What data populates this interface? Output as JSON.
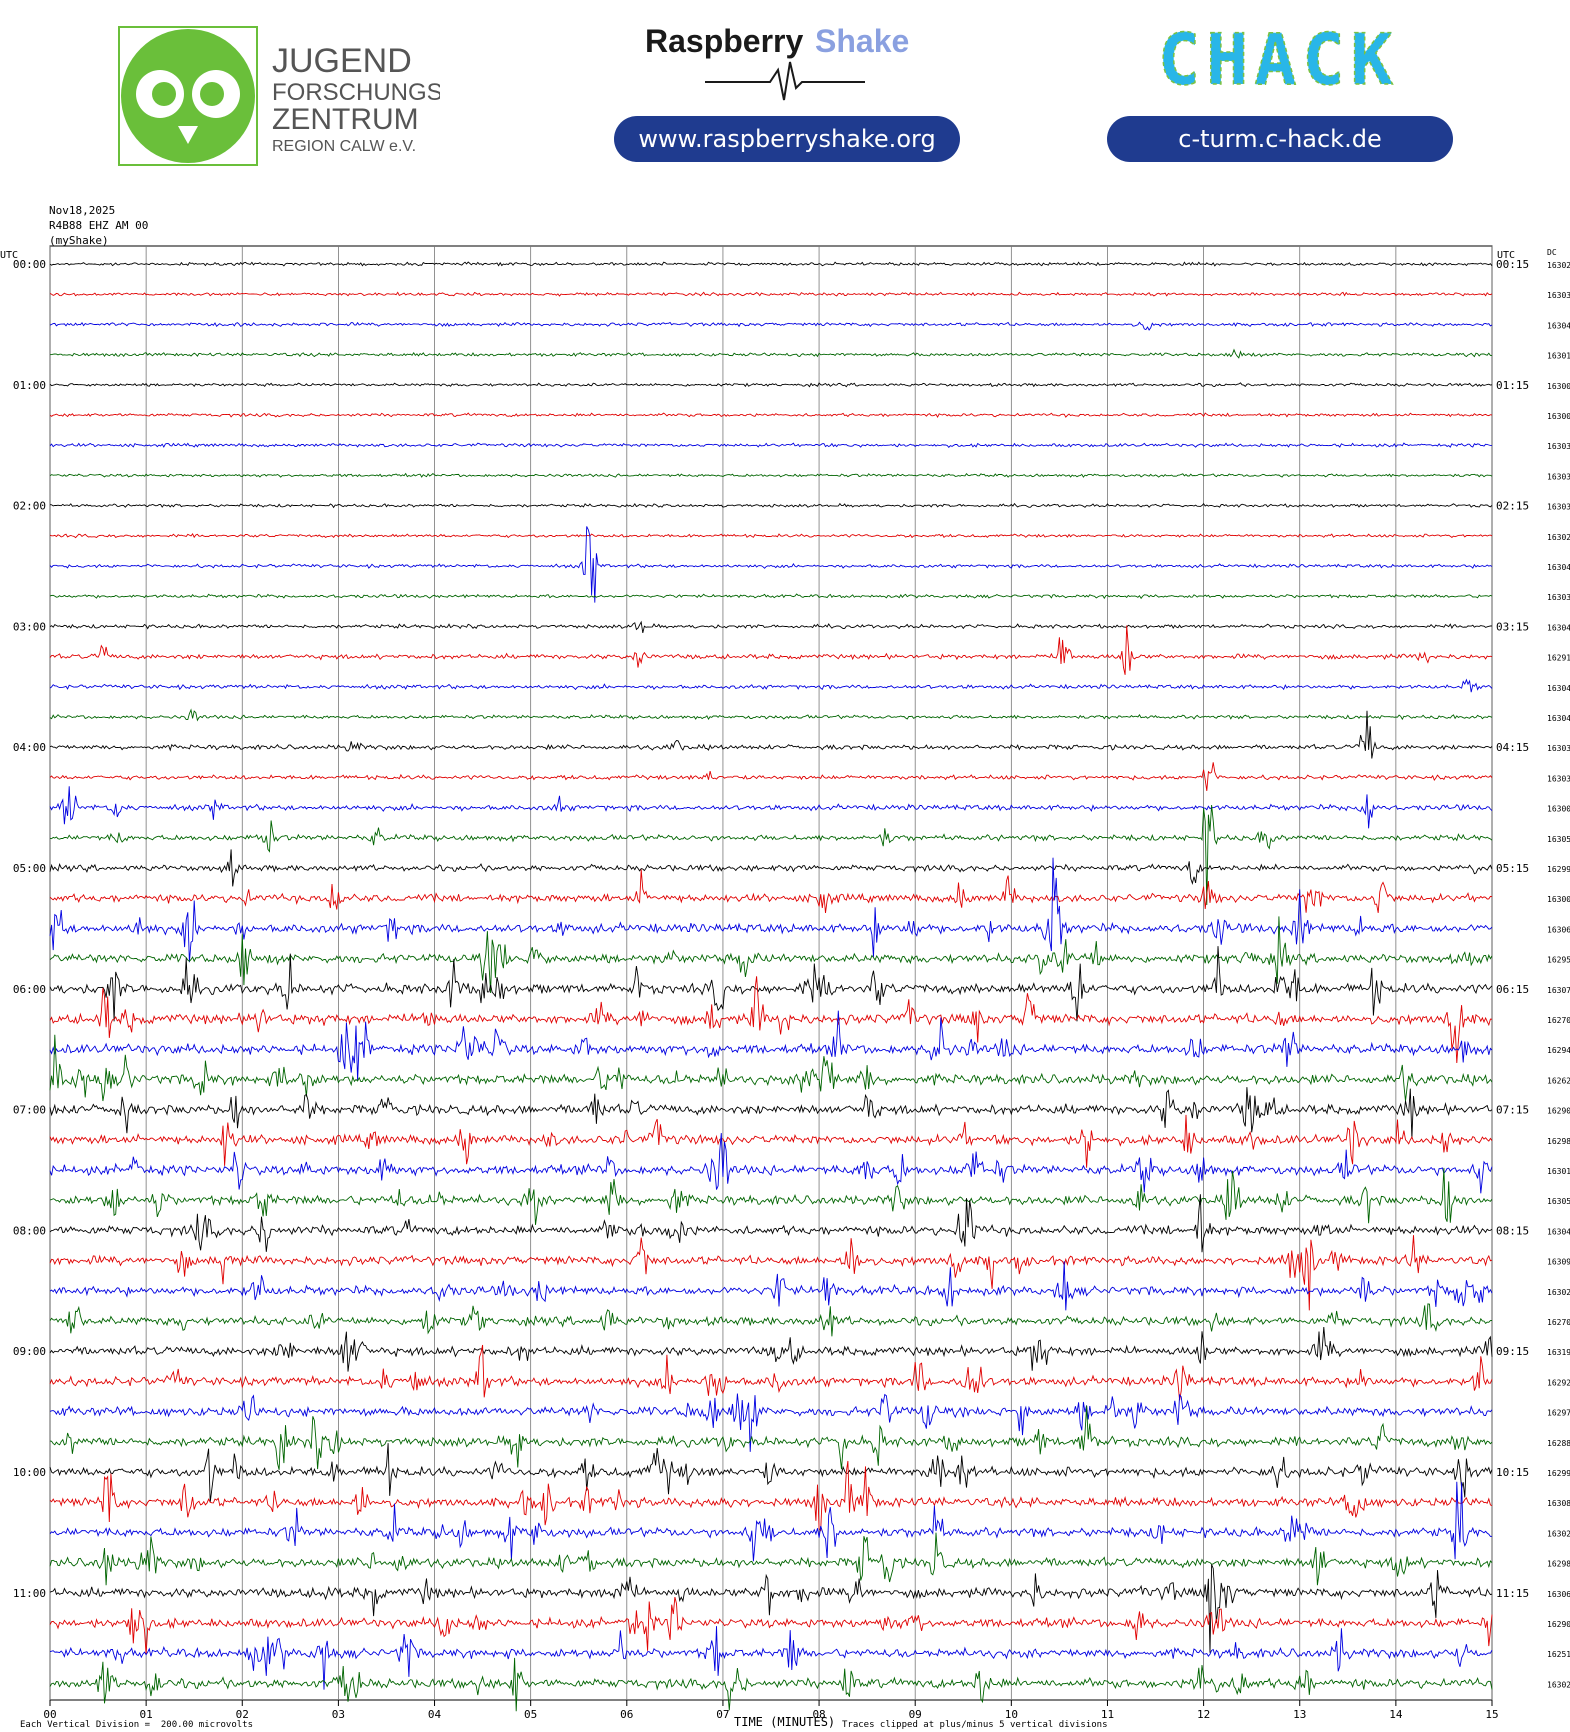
{
  "header": {
    "jfz_logo_lines": [
      "JUGEND",
      "FORSCHUNGS",
      "ZENTRUM",
      "REGION CALW e.V."
    ],
    "rs_brand_1": "Raspberry",
    "rs_brand_2": "Shake",
    "rs_url": "www.raspberryshake.org",
    "chack_logo": "CHACK",
    "chack_url": "c-turm.c-hack.de",
    "colors": {
      "pill_bg": "#1f3b8f",
      "jfz_green": "#6abf3a",
      "chack_green": "#7cc242",
      "chack_cyan": "#29b6e8",
      "rs_blue": "#8aa0e0"
    }
  },
  "meta": {
    "date": "Nov18,2025",
    "station": "R4B88 EHZ AM 00",
    "network": "(myShake)"
  },
  "chart_data": {
    "type": "line",
    "title": "",
    "left_axis_header": "UTC",
    "right_axis_header": "UTC",
    "dc_header": "DC",
    "xlabel": "TIME (MINUTES)",
    "x_ticks": [
      "00",
      "01",
      "02",
      "03",
      "04",
      "05",
      "06",
      "07",
      "08",
      "09",
      "10",
      "11",
      "12",
      "13",
      "14",
      "15"
    ],
    "xlim": [
      0,
      15
    ],
    "grid": true,
    "trace_colors": [
      "#000000",
      "#e00000",
      "#0000e0",
      "#006400"
    ],
    "left_labels": [
      "00:00",
      "",
      "",
      "",
      "01:00",
      "",
      "",
      "",
      "02:00",
      "",
      "",
      "",
      "03:00",
      "",
      "",
      "",
      "04:00",
      "",
      "",
      "",
      "05:00",
      "",
      "",
      "",
      "06:00",
      "",
      "",
      "",
      "07:00",
      "",
      "",
      "",
      "08:00",
      "",
      "",
      "",
      "09:00",
      "",
      "",
      "",
      "10:00",
      "",
      "",
      "",
      "11:00",
      "",
      "",
      ""
    ],
    "right_labels": [
      "00:15",
      "",
      "",
      "",
      "01:15",
      "",
      "",
      "",
      "02:15",
      "",
      "",
      "",
      "03:15",
      "",
      "",
      "",
      "04:15",
      "",
      "",
      "",
      "05:15",
      "",
      "",
      "",
      "06:15",
      "",
      "",
      "",
      "07:15",
      "",
      "",
      "",
      "08:15",
      "",
      "",
      "",
      "09:15",
      "",
      "",
      "",
      "10:15",
      "",
      "",
      "",
      "11:15",
      "",
      "",
      ""
    ],
    "dc_values": [
      "16302",
      "16303",
      "16304",
      "16301",
      "16300",
      "16300",
      "16303",
      "16303",
      "16303",
      "16302",
      "16304",
      "16303",
      "16304",
      "16291",
      "16304",
      "16304",
      "16303",
      "16303",
      "16300",
      "16305",
      "16299",
      "16300",
      "16306",
      "16295",
      "16307",
      "16270",
      "16294",
      "16262",
      "16290",
      "16298",
      "16301",
      "16305",
      "16304",
      "16309",
      "16302",
      "16270",
      "16319",
      "16292",
      "16297",
      "16288",
      "16299",
      "16308",
      "16302",
      "16298",
      "16306",
      "16290",
      "16251",
      "16302"
    ],
    "activity": [
      0.1,
      0.1,
      0.15,
      0.15,
      0.1,
      0.12,
      0.15,
      0.1,
      0.1,
      0.12,
      0.15,
      0.15,
      0.2,
      0.35,
      0.25,
      0.2,
      0.35,
      0.3,
      0.45,
      0.5,
      0.55,
      0.8,
      1.0,
      1.0,
      1.1,
      1.1,
      1.1,
      1.1,
      1.05,
      1.0,
      1.05,
      1.0,
      1.0,
      0.95,
      0.95,
      0.9,
      0.95,
      0.95,
      1.0,
      1.0,
      1.05,
      1.0,
      1.0,
      1.0,
      1.05,
      1.0,
      1.0,
      1.0
    ],
    "events": [
      {
        "row": 2,
        "x": 11.4,
        "amp": 10
      },
      {
        "row": 3,
        "x": 12.35,
        "amp": 8
      },
      {
        "row": 10,
        "x": 5.62,
        "amp": 70
      },
      {
        "row": 13,
        "x": 0.55,
        "amp": 12
      },
      {
        "row": 13,
        "x": 10.55,
        "amp": 38
      },
      {
        "row": 13,
        "x": 11.2,
        "amp": 40
      },
      {
        "row": 16,
        "x": 13.7,
        "amp": 48
      },
      {
        "row": 17,
        "x": 12.05,
        "amp": 30
      },
      {
        "row": 18,
        "x": 0.2,
        "amp": 50
      },
      {
        "row": 18,
        "x": 13.7,
        "amp": 40
      },
      {
        "row": 19,
        "x": 2.25,
        "amp": 40
      },
      {
        "row": 19,
        "x": 12.05,
        "amp": 60
      },
      {
        "row": 21,
        "x": 13.85,
        "amp": 30
      },
      {
        "row": 22,
        "x": 1.45,
        "amp": 40
      },
      {
        "row": 22,
        "x": 13.0,
        "amp": 60
      },
      {
        "row": 24,
        "x": 1.45,
        "amp": 35
      },
      {
        "row": 26,
        "x": 4.3,
        "amp": 40
      },
      {
        "row": 27,
        "x": 8.05,
        "amp": 35
      },
      {
        "row": 30,
        "x": 7.0,
        "amp": 40
      },
      {
        "row": 31,
        "x": 12.3,
        "amp": 50
      },
      {
        "row": 33,
        "x": 13.1,
        "amp": 45
      },
      {
        "row": 37,
        "x": 4.5,
        "amp": 40
      },
      {
        "row": 40,
        "x": 1.65,
        "amp": 40
      },
      {
        "row": 41,
        "x": 13.6,
        "amp": 45
      },
      {
        "row": 42,
        "x": 8.1,
        "amp": 55
      },
      {
        "row": 44,
        "x": 12.05,
        "amp": 35
      },
      {
        "row": 47,
        "x": 9.7,
        "amp": 40
      }
    ],
    "footer_left": "Each Vertical Division =  200.00 microvolts",
    "footer_right": "Traces clipped at plus/minus 5 vertical divisions"
  }
}
